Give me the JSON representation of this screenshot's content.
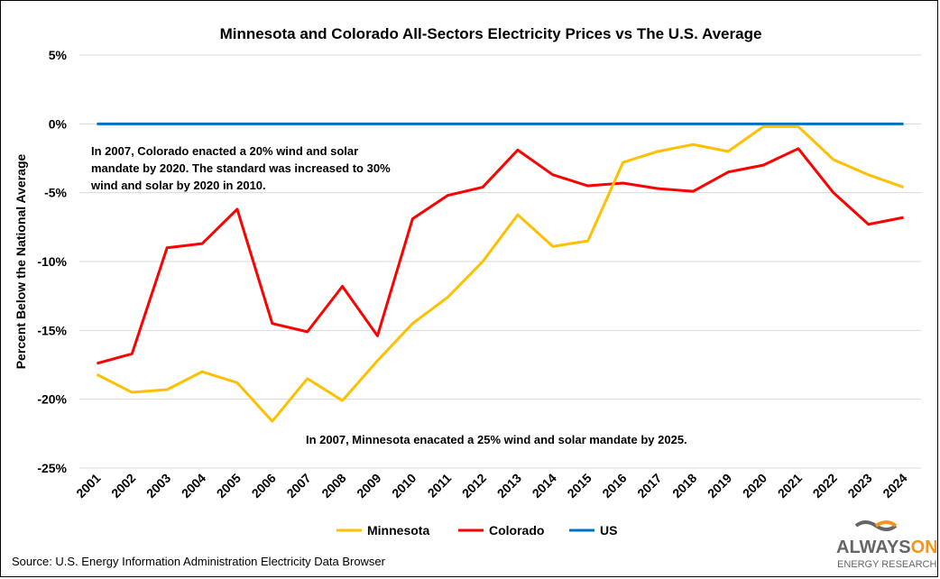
{
  "chart_data": {
    "type": "line",
    "title": "Minnesota and Colorado All-Sectors Electricity Prices vs The U.S. Average",
    "xlabel": "",
    "ylabel": "Percent Below the National Average",
    "ylim": [
      -25,
      5
    ],
    "yticks": [
      "5%",
      "0%",
      "-5%",
      "-10%",
      "-15%",
      "-20%",
      "-25%"
    ],
    "ytick_values": [
      5,
      0,
      -5,
      -10,
      -15,
      -20,
      -25
    ],
    "grid": true,
    "legend_placement": "bottom",
    "x": [
      "2001",
      "2002",
      "2003",
      "2004",
      "2005",
      "2006",
      "2007",
      "2008",
      "2009",
      "2010",
      "2011",
      "2012",
      "2013",
      "2014",
      "2015",
      "2016",
      "2017",
      "2018",
      "2019",
      "2020",
      "2021",
      "2022",
      "2023",
      "2024"
    ],
    "series": [
      {
        "name": "Minnesota",
        "color": "#FFC000",
        "values": [
          -18.2,
          -19.5,
          -19.3,
          -18.0,
          -18.8,
          -21.6,
          -18.5,
          -20.1,
          -17.2,
          -14.5,
          -12.6,
          -10.0,
          -6.6,
          -8.9,
          -8.5,
          -2.8,
          -2.0,
          -1.5,
          -2.0,
          -0.2,
          -0.2,
          -2.6,
          -3.7,
          -4.6
        ]
      },
      {
        "name": "Colorado",
        "color": "#FF0000",
        "values": [
          -17.4,
          -16.7,
          -9.0,
          -8.7,
          -6.2,
          -14.5,
          -15.1,
          -11.8,
          -15.4,
          -6.9,
          -5.2,
          -4.6,
          -1.9,
          -3.7,
          -4.5,
          -4.3,
          -4.7,
          -4.9,
          -3.5,
          -3.0,
          -1.8,
          -5.0,
          -7.3,
          -6.8
        ]
      },
      {
        "name": "US",
        "color": "#0070C0",
        "values": [
          0,
          0,
          0,
          0,
          0,
          0,
          0,
          0,
          0,
          0,
          0,
          0,
          0,
          0,
          0,
          0,
          0,
          0,
          0,
          0,
          0,
          0,
          0,
          0
        ]
      }
    ],
    "annotations": [
      "In 2007, Colorado enacted a 20% wind and solar",
      "mandate by  2020. The standard was increased to 30%",
      "wind and solar by 2020 in 2010.",
      "In 2007, Minnesota enacated a 25% wind and solar mandate by 2025."
    ]
  },
  "source": "Source: U.S. Energy Information Administration Electricity Data Browser",
  "logo": {
    "text1": "ALWAYS",
    "text2": "ON",
    "text3": "ENERGY RESEARCH"
  }
}
